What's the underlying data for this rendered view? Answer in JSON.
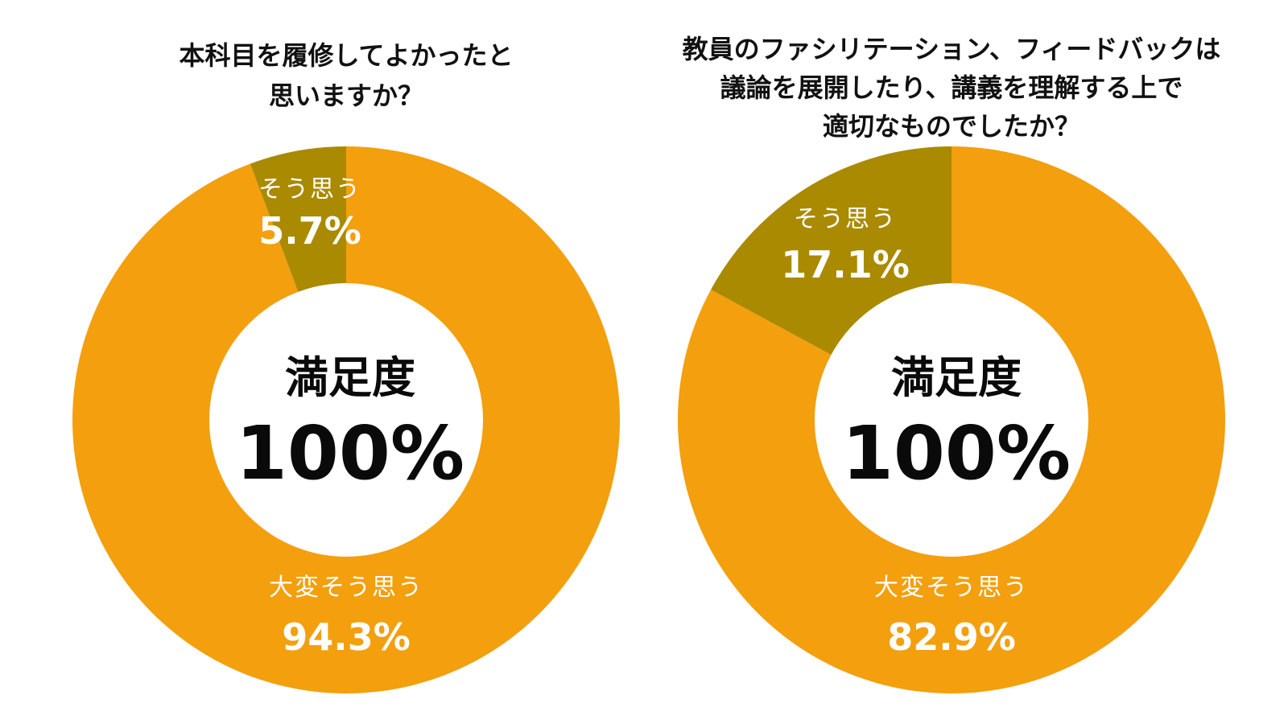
{
  "colors": {
    "major": "#F39F0E",
    "minor": "#AA8A00",
    "hole": "#ffffff",
    "text_dark": "#0a0a0a",
    "text_light": "#ffffff"
  },
  "chart_data": [
    {
      "type": "pie",
      "title_lines": [
        "本科目を履修してよかったと",
        "思いますか？"
      ],
      "center_label": "満足度",
      "center_value": "100%",
      "slices": [
        {
          "label": "大変そう思う",
          "value": 94.3,
          "value_text": "94.3%",
          "color": "#F39F0E"
        },
        {
          "label": "そう思う",
          "value": 5.7,
          "value_text": "5.7%",
          "color": "#AA8A00"
        }
      ]
    },
    {
      "type": "pie",
      "title_lines": [
        "教員のファシリテーション、フィードバックは",
        "議論を展開したり、講義を理解する上で",
        "適切なものでしたか？"
      ],
      "center_label": "満足度",
      "center_value": "100%",
      "slices": [
        {
          "label": "大変そう思う",
          "value": 82.9,
          "value_text": "82.9%",
          "color": "#F39F0E"
        },
        {
          "label": "そう思う",
          "value": 17.1,
          "value_text": "17.1%",
          "color": "#AA8A00"
        }
      ]
    }
  ]
}
